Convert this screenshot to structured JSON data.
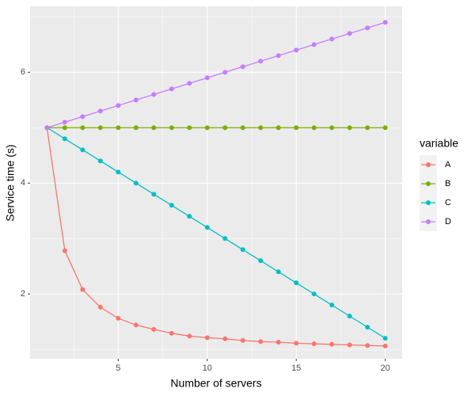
{
  "chart_data": {
    "type": "line",
    "x_label": "Number of servers",
    "y_label": "Service time (s)",
    "x": [
      1,
      2,
      3,
      4,
      5,
      6,
      7,
      8,
      9,
      10,
      11,
      12,
      13,
      14,
      15,
      16,
      17,
      18,
      19,
      20
    ],
    "series": [
      {
        "name": "A",
        "color": "#F8766D",
        "values": [
          5,
          2.78,
          2.08,
          1.76,
          1.56,
          1.44,
          1.36,
          1.29,
          1.24,
          1.21,
          1.19,
          1.16,
          1.14,
          1.13,
          1.11,
          1.1,
          1.09,
          1.08,
          1.07,
          1.06
        ]
      },
      {
        "name": "B",
        "color": "#7CAE00",
        "values": [
          5,
          5,
          5,
          5,
          5,
          5,
          5,
          5,
          5,
          5,
          5,
          5,
          5,
          5,
          5,
          5,
          5,
          5,
          5,
          5
        ]
      },
      {
        "name": "C",
        "color": "#00BFC4",
        "values": [
          5,
          4.8,
          4.6,
          4.4,
          4.2,
          4,
          3.8,
          3.6,
          3.4,
          3.2,
          3,
          2.8,
          2.6,
          2.4,
          2.2,
          2,
          1.8,
          1.6,
          1.4,
          1.2
        ]
      },
      {
        "name": "D",
        "color": "#C77CFF",
        "values": [
          5,
          5.1,
          5.2,
          5.3,
          5.4,
          5.5,
          5.6,
          5.7,
          5.8,
          5.9,
          6,
          6.1,
          6.2,
          6.3,
          6.4,
          6.5,
          6.6,
          6.7,
          6.8,
          6.9
        ]
      }
    ],
    "legend_title": "variable",
    "legend": "right",
    "xlim": [
      0.05,
      20.95
    ],
    "xticks": [
      5,
      10,
      15,
      20
    ],
    "ylim": [
      0.83,
      7.19
    ],
    "yticks": [
      2,
      4,
      6
    ],
    "grid": true
  }
}
